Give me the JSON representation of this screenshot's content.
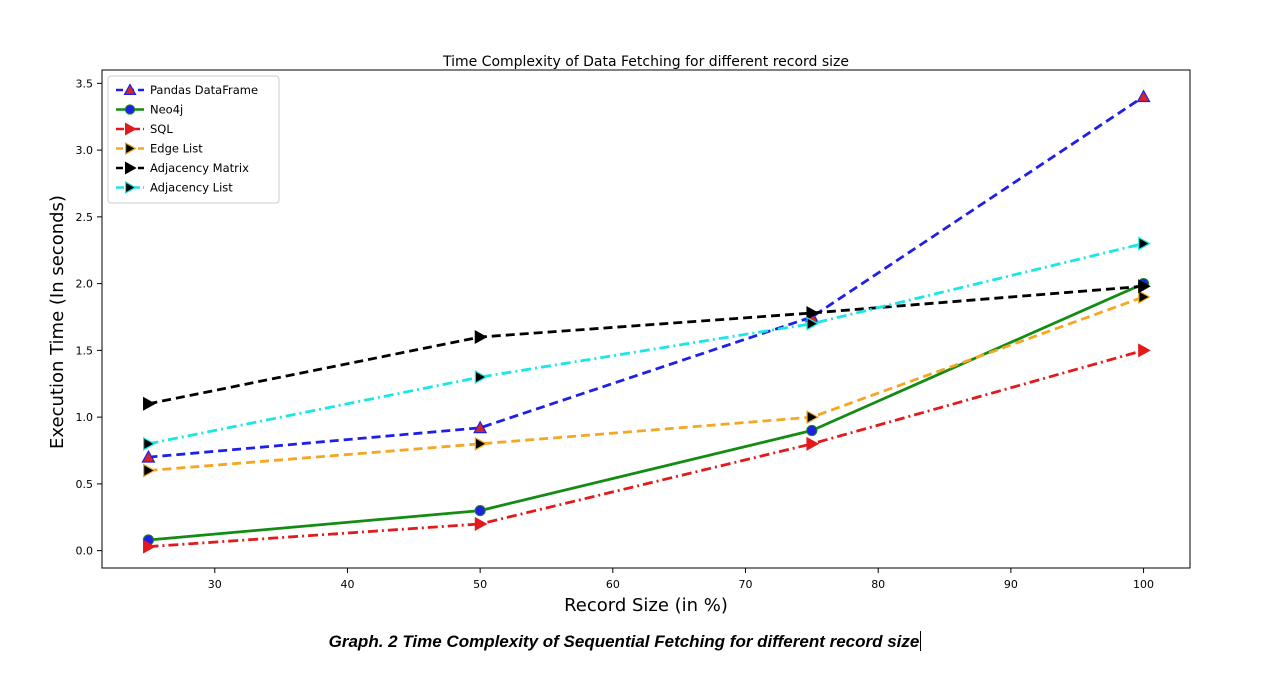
{
  "chart_data": {
    "type": "line",
    "title": "Time Complexity of Data Fetching for different record size",
    "xlabel": "Record Size (in %)",
    "ylabel": "Execution Time (In seconds)",
    "xlim": [
      21.5,
      103.5
    ],
    "ylim": [
      -0.13,
      3.6
    ],
    "xticks": [
      30,
      40,
      50,
      60,
      70,
      80,
      90,
      100
    ],
    "yticks": [
      "0.0",
      "0.5",
      "1.0",
      "1.5",
      "2.0",
      "2.5",
      "3.0",
      "3.5"
    ],
    "x": [
      25,
      50,
      75,
      100
    ],
    "grid": false,
    "legend_position": "top-left",
    "series": [
      {
        "name": "Pandas DataFrame",
        "values": [
          0.7,
          0.92,
          1.75,
          3.4
        ],
        "color": "#1f1fe6",
        "dash": "dashed",
        "marker": "triangle-up",
        "marker_color": "#d62728"
      },
      {
        "name": "Neo4j",
        "values": [
          0.08,
          0.3,
          0.9,
          2.0
        ],
        "color": "#138c13",
        "dash": "solid",
        "marker": "circle",
        "marker_color": "#1f1fe6"
      },
      {
        "name": " SQL",
        "values": [
          0.03,
          0.2,
          0.8,
          1.5
        ],
        "color": "#e31a1c",
        "dash": "dashdot",
        "marker": "triangle-right",
        "marker_color": "#e31a1c"
      },
      {
        "name": "Edge List",
        "values": [
          0.6,
          0.8,
          1.0,
          1.9
        ],
        "color": "#f5a623",
        "dash": "dashed",
        "marker": "triangle-right",
        "marker_color": "#000000"
      },
      {
        "name": "Adjacency Matrix",
        "values": [
          1.1,
          1.6,
          1.78,
          1.98
        ],
        "color": "#000000",
        "dash": "dashed",
        "marker": "triangle-right",
        "marker_color": "#000000"
      },
      {
        "name": "Adjacency List",
        "values": [
          0.8,
          1.3,
          1.7,
          2.3
        ],
        "color": "#19e6e6",
        "dash": "dashdot",
        "marker": "triangle-right",
        "marker_color": "#000000"
      }
    ]
  },
  "caption": "Graph. 2 Time Complexity of Sequential Fetching for different record size"
}
